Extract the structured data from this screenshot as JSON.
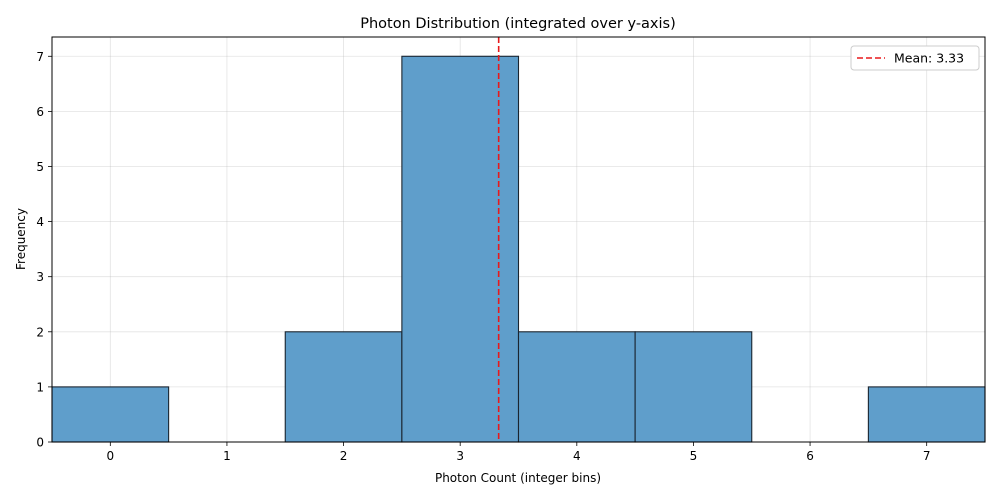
{
  "chart_data": {
    "type": "bar",
    "title": "Photon Distribution (integrated over y-axis)",
    "xlabel": "Photon Count (integer bins)",
    "ylabel": "Frequency",
    "xlim": [
      -0.5,
      7.5
    ],
    "ylim": [
      0,
      7.35
    ],
    "xticks": [
      0,
      1,
      2,
      3,
      4,
      5,
      6,
      7
    ],
    "yticks": [
      0,
      1,
      2,
      3,
      4,
      5,
      6,
      7
    ],
    "bins": [
      {
        "x": 0,
        "value": 1
      },
      {
        "x": 1,
        "value": 0
      },
      {
        "x": 2,
        "value": 2
      },
      {
        "x": 3,
        "value": 7
      },
      {
        "x": 4,
        "value": 2
      },
      {
        "x": 5,
        "value": 2
      },
      {
        "x": 6,
        "value": 0
      },
      {
        "x": 7,
        "value": 1
      }
    ],
    "bar_color": "#5f9ecb",
    "mean": 3.33,
    "mean_color": "#e8191b",
    "legend": {
      "label": "Mean: 3.33",
      "position": "top-right"
    },
    "grid": true
  }
}
